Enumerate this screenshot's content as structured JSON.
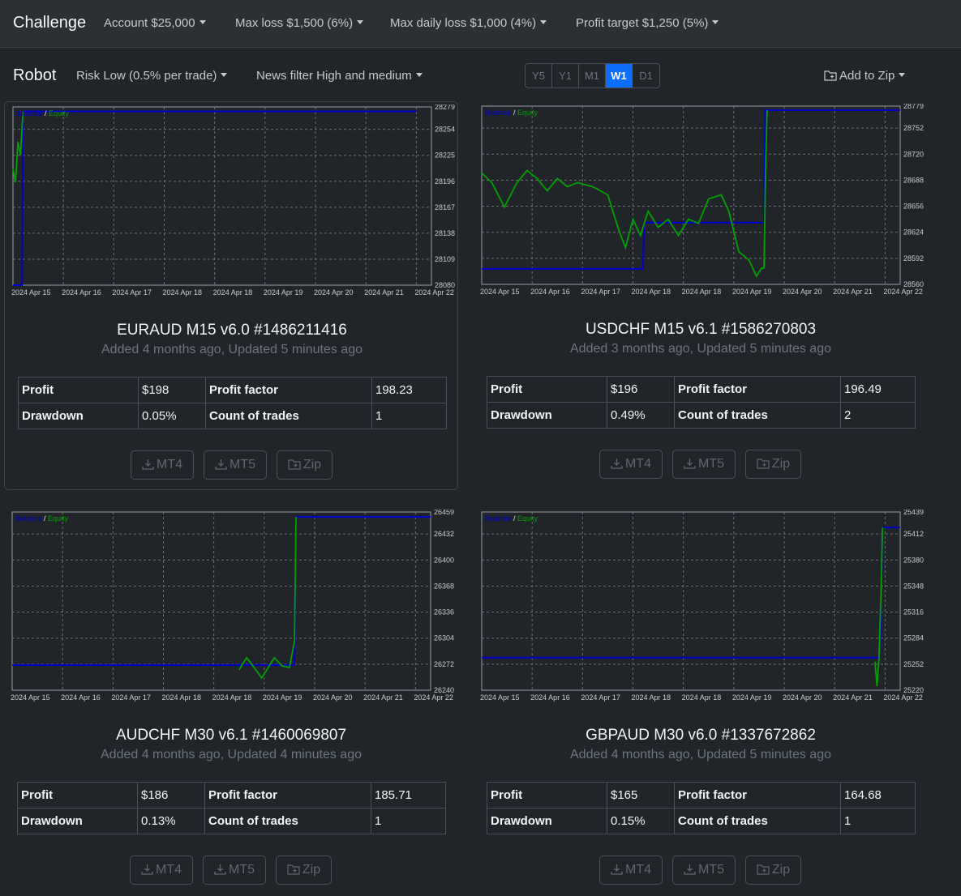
{
  "topnav": {
    "brand": "Challenge",
    "items": [
      {
        "label": "Account $25,000"
      },
      {
        "label": "Max loss $1,500 (6%)"
      },
      {
        "label": "Max daily loss $1,000 (4%)"
      },
      {
        "label": "Profit target $1,250 (5%)"
      }
    ]
  },
  "toolbar": {
    "title": "Robot",
    "risk": "Risk Low (0.5% per trade)",
    "news": "News filter High and medium",
    "timeframes": [
      "Y5",
      "Y1",
      "M1",
      "W1",
      "D1"
    ],
    "active_timeframe": "W1",
    "add_zip": "Add to Zip"
  },
  "chart_legend": {
    "balance": "Balance",
    "separator": "/",
    "equity": "Equity"
  },
  "colors": {
    "balance": "#0000cc",
    "equity": "#00a000",
    "accent": "#0d6efd"
  },
  "stat_labels": {
    "profit": "Profit",
    "profit_factor": "Profit factor",
    "drawdown": "Drawdown",
    "count_of_trades": "Count of trades"
  },
  "buttons": {
    "mt4": "MT4",
    "mt5": "MT5",
    "zip": "Zip"
  },
  "robots": [
    {
      "title": "EURAUD M15 v6.0 #1486211416",
      "subtitle": "Added 4 months ago, Updated 5 minutes ago",
      "profit": "$198",
      "profit_factor": "198.23",
      "drawdown": "0.05%",
      "count_of_trades": "1"
    },
    {
      "title": "USDCHF M15 v6.1 #1586270803",
      "subtitle": "Added 3 months ago, Updated 5 minutes ago",
      "profit": "$196",
      "profit_factor": "196.49",
      "drawdown": "0.49%",
      "count_of_trades": "2"
    },
    {
      "title": "AUDCHF M30 v6.1 #1460069807",
      "subtitle": "Added 4 months ago, Updated 4 minutes ago",
      "profit": "$186",
      "profit_factor": "185.71",
      "drawdown": "0.13%",
      "count_of_trades": "1"
    },
    {
      "title": "GBPAUD M30 v6.0 #1337672862",
      "subtitle": "Added 4 months ago, Updated 5 minutes ago",
      "profit": "$165",
      "profit_factor": "164.68",
      "drawdown": "0.15%",
      "count_of_trades": "1"
    }
  ],
  "chart_data": [
    {
      "type": "line",
      "x_tick_labels": [
        "2024 Apr 15",
        "2024 Apr 16",
        "2024 Apr 17",
        "2024 Apr 18",
        "2024 Apr 18",
        "2024 Apr 19",
        "2024 Apr 20",
        "2024 Apr 21",
        "2024 Apr 22"
      ],
      "y_tick_labels": [
        28279,
        28254,
        28225,
        28196,
        28167,
        28138,
        28109,
        28080
      ],
      "ylim": [
        28080,
        28279
      ],
      "grid": true,
      "series": [
        {
          "name": "Balance",
          "color": "#0000cc",
          "points": [
            [
              0,
              28080
            ],
            [
              0.18,
              28080
            ],
            [
              0.2,
              28274
            ],
            [
              8,
              28274
            ]
          ]
        },
        {
          "name": "Equity",
          "color": "#00a000",
          "points": [
            [
              0,
              28210
            ],
            [
              0.05,
              28195
            ],
            [
              0.1,
              28240
            ],
            [
              0.15,
              28225
            ],
            [
              0.2,
              28274
            ]
          ]
        }
      ]
    },
    {
      "type": "line",
      "x_tick_labels": [
        "2024 Apr 15",
        "2024 Apr 16",
        "2024 Apr 17",
        "2024 Apr 18",
        "2024 Apr 18",
        "2024 Apr 19",
        "2024 Apr 20",
        "2024 Apr 21",
        "2024 Apr 22"
      ],
      "y_tick_labels": [
        28779,
        28752,
        28720,
        28688,
        28656,
        28624,
        28592,
        28560
      ],
      "ylim": [
        28560,
        28779
      ],
      "grid": true,
      "series": [
        {
          "name": "Balance",
          "color": "#0000cc",
          "points": [
            [
              0,
              28579
            ],
            [
              3.2,
              28579
            ],
            [
              3.22,
              28636
            ],
            [
              5.6,
              28636
            ],
            [
              5.62,
              28774
            ],
            [
              8.3,
              28774
            ]
          ]
        },
        {
          "name": "Equity",
          "color": "#00a000",
          "points": [
            [
              0,
              28697
            ],
            [
              0.2,
              28685
            ],
            [
              0.45,
              28655
            ],
            [
              0.7,
              28685
            ],
            [
              0.9,
              28700
            ],
            [
              1.1,
              28690
            ],
            [
              1.3,
              28675
            ],
            [
              1.5,
              28690
            ],
            [
              1.7,
              28680
            ],
            [
              1.9,
              28685
            ],
            [
              2.2,
              28680
            ],
            [
              2.5,
              28670
            ],
            [
              2.7,
              28630
            ],
            [
              2.85,
              28605
            ],
            [
              3.0,
              28640
            ],
            [
              3.15,
              28620
            ],
            [
              3.3,
              28650
            ],
            [
              3.5,
              28630
            ],
            [
              3.7,
              28640
            ],
            [
              3.9,
              28620
            ],
            [
              4.1,
              28640
            ],
            [
              4.3,
              28635
            ],
            [
              4.5,
              28665
            ],
            [
              4.75,
              28670
            ],
            [
              4.9,
              28650
            ],
            [
              5.1,
              28600
            ],
            [
              5.3,
              28590
            ],
            [
              5.45,
              28570
            ],
            [
              5.55,
              28580
            ],
            [
              5.6,
              28580
            ],
            [
              5.63,
              28700
            ],
            [
              5.66,
              28774
            ]
          ]
        }
      ]
    },
    {
      "type": "line",
      "x_tick_labels": [
        "2024 Apr 15",
        "2024 Apr 16",
        "2024 Apr 17",
        "2024 Apr 18",
        "2024 Apr 18",
        "2024 Apr 19",
        "2024 Apr 20",
        "2024 Apr 21",
        "2024 Apr 22"
      ],
      "y_tick_labels": [
        26459,
        26432,
        26400,
        26368,
        26336,
        26304,
        26272,
        26240
      ],
      "ylim": [
        26240,
        26459
      ],
      "grid": true,
      "series": [
        {
          "name": "Balance",
          "color": "#0000cc",
          "points": [
            [
              0,
              26271
            ],
            [
              5.6,
              26271
            ],
            [
              5.63,
              26453
            ],
            [
              8.3,
              26453
            ]
          ]
        },
        {
          "name": "Equity",
          "color": "#00a000",
          "points": [
            [
              4.5,
              26265
            ],
            [
              4.65,
              26280
            ],
            [
              4.8,
              26268
            ],
            [
              4.95,
              26255
            ],
            [
              5.05,
              26265
            ],
            [
              5.2,
              26280
            ],
            [
              5.35,
              26270
            ],
            [
              5.5,
              26268
            ],
            [
              5.6,
              26300
            ],
            [
              5.63,
              26453
            ]
          ]
        }
      ]
    },
    {
      "type": "line",
      "x_tick_labels": [
        "2024 Apr 15",
        "2024 Apr 16",
        "2024 Apr 17",
        "2024 Apr 18",
        "2024 Apr 18",
        "2024 Apr 19",
        "2024 Apr 20",
        "2024 Apr 21",
        "2024 Apr 22"
      ],
      "y_tick_labels": [
        25439,
        25412,
        25380,
        25348,
        25316,
        25284,
        25252,
        25220
      ],
      "ylim": [
        25220,
        25439
      ],
      "grid": true,
      "series": [
        {
          "name": "Balance",
          "color": "#0000cc",
          "points": [
            [
              0,
              25260
            ],
            [
              7.9,
              25260
            ],
            [
              7.95,
              25420
            ],
            [
              8.3,
              25420
            ]
          ]
        },
        {
          "name": "Equity",
          "color": "#00a000",
          "points": [
            [
              7.8,
              25255
            ],
            [
              7.84,
              25225
            ],
            [
              7.88,
              25260
            ],
            [
              7.92,
              25340
            ],
            [
              7.95,
              25420
            ]
          ]
        }
      ]
    }
  ]
}
